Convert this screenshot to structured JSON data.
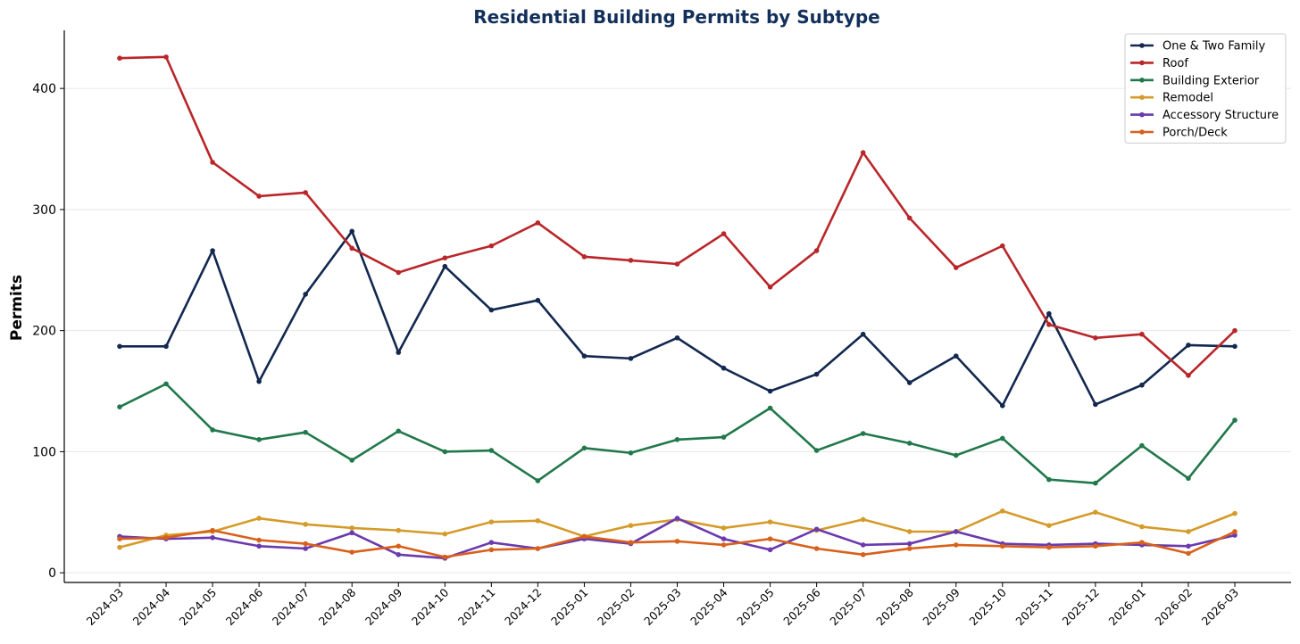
{
  "chart_data": {
    "type": "line",
    "title": "Residential Building Permits by Subtype",
    "xlabel": "",
    "ylabel": "Permits",
    "ylim": [
      -8,
      448
    ],
    "yticks": [
      0,
      100,
      200,
      300,
      400
    ],
    "grid": "horizontal",
    "legend_position": "top-right",
    "categories": [
      "2024-03",
      "2024-04",
      "2024-05",
      "2024-06",
      "2024-07",
      "2024-08",
      "2024-09",
      "2024-10",
      "2024-11",
      "2024-12",
      "2025-01",
      "2025-02",
      "2025-03",
      "2025-04",
      "2025-05",
      "2025-06",
      "2025-07",
      "2025-08",
      "2025-09",
      "2025-10",
      "2025-11",
      "2025-12",
      "2026-01",
      "2026-02",
      "2026-03"
    ],
    "series": [
      {
        "name": "One & Two Family",
        "color": "#13284f",
        "values": [
          187,
          187,
          266,
          158,
          230,
          282,
          182,
          253,
          217,
          225,
          179,
          177,
          194,
          169,
          150,
          164,
          197,
          157,
          179,
          138,
          214,
          139,
          155,
          188,
          187
        ]
      },
      {
        "name": "Roof",
        "color": "#b9262a",
        "values": [
          425,
          426,
          339,
          311,
          314,
          268,
          248,
          260,
          270,
          289,
          261,
          258,
          255,
          280,
          236,
          266,
          347,
          293,
          252,
          270,
          205,
          194,
          197,
          163,
          200
        ]
      },
      {
        "name": "Building Exterior",
        "color": "#21784b",
        "values": [
          137,
          156,
          118,
          110,
          116,
          93,
          117,
          100,
          101,
          76,
          103,
          99,
          110,
          112,
          136,
          101,
          115,
          107,
          97,
          111,
          77,
          74,
          105,
          78,
          126
        ]
      },
      {
        "name": "Remodel",
        "color": "#d49b2a",
        "values": [
          21,
          31,
          34,
          45,
          40,
          37,
          35,
          32,
          42,
          43,
          30,
          39,
          44,
          37,
          42,
          35,
          44,
          34,
          34,
          51,
          39,
          50,
          38,
          34,
          49
        ]
      },
      {
        "name": "Accessory Structure",
        "color": "#6a3aae",
        "values": [
          30,
          28,
          29,
          22,
          20,
          33,
          15,
          12,
          25,
          20,
          28,
          24,
          45,
          28,
          19,
          36,
          23,
          24,
          34,
          24,
          23,
          24,
          23,
          22,
          31
        ]
      },
      {
        "name": "Porch/Deck",
        "color": "#d8601a",
        "values": [
          28,
          29,
          35,
          27,
          24,
          17,
          22,
          13,
          19,
          20,
          30,
          25,
          26,
          23,
          28,
          20,
          15,
          20,
          23,
          22,
          21,
          22,
          25,
          16,
          34
        ]
      }
    ]
  }
}
